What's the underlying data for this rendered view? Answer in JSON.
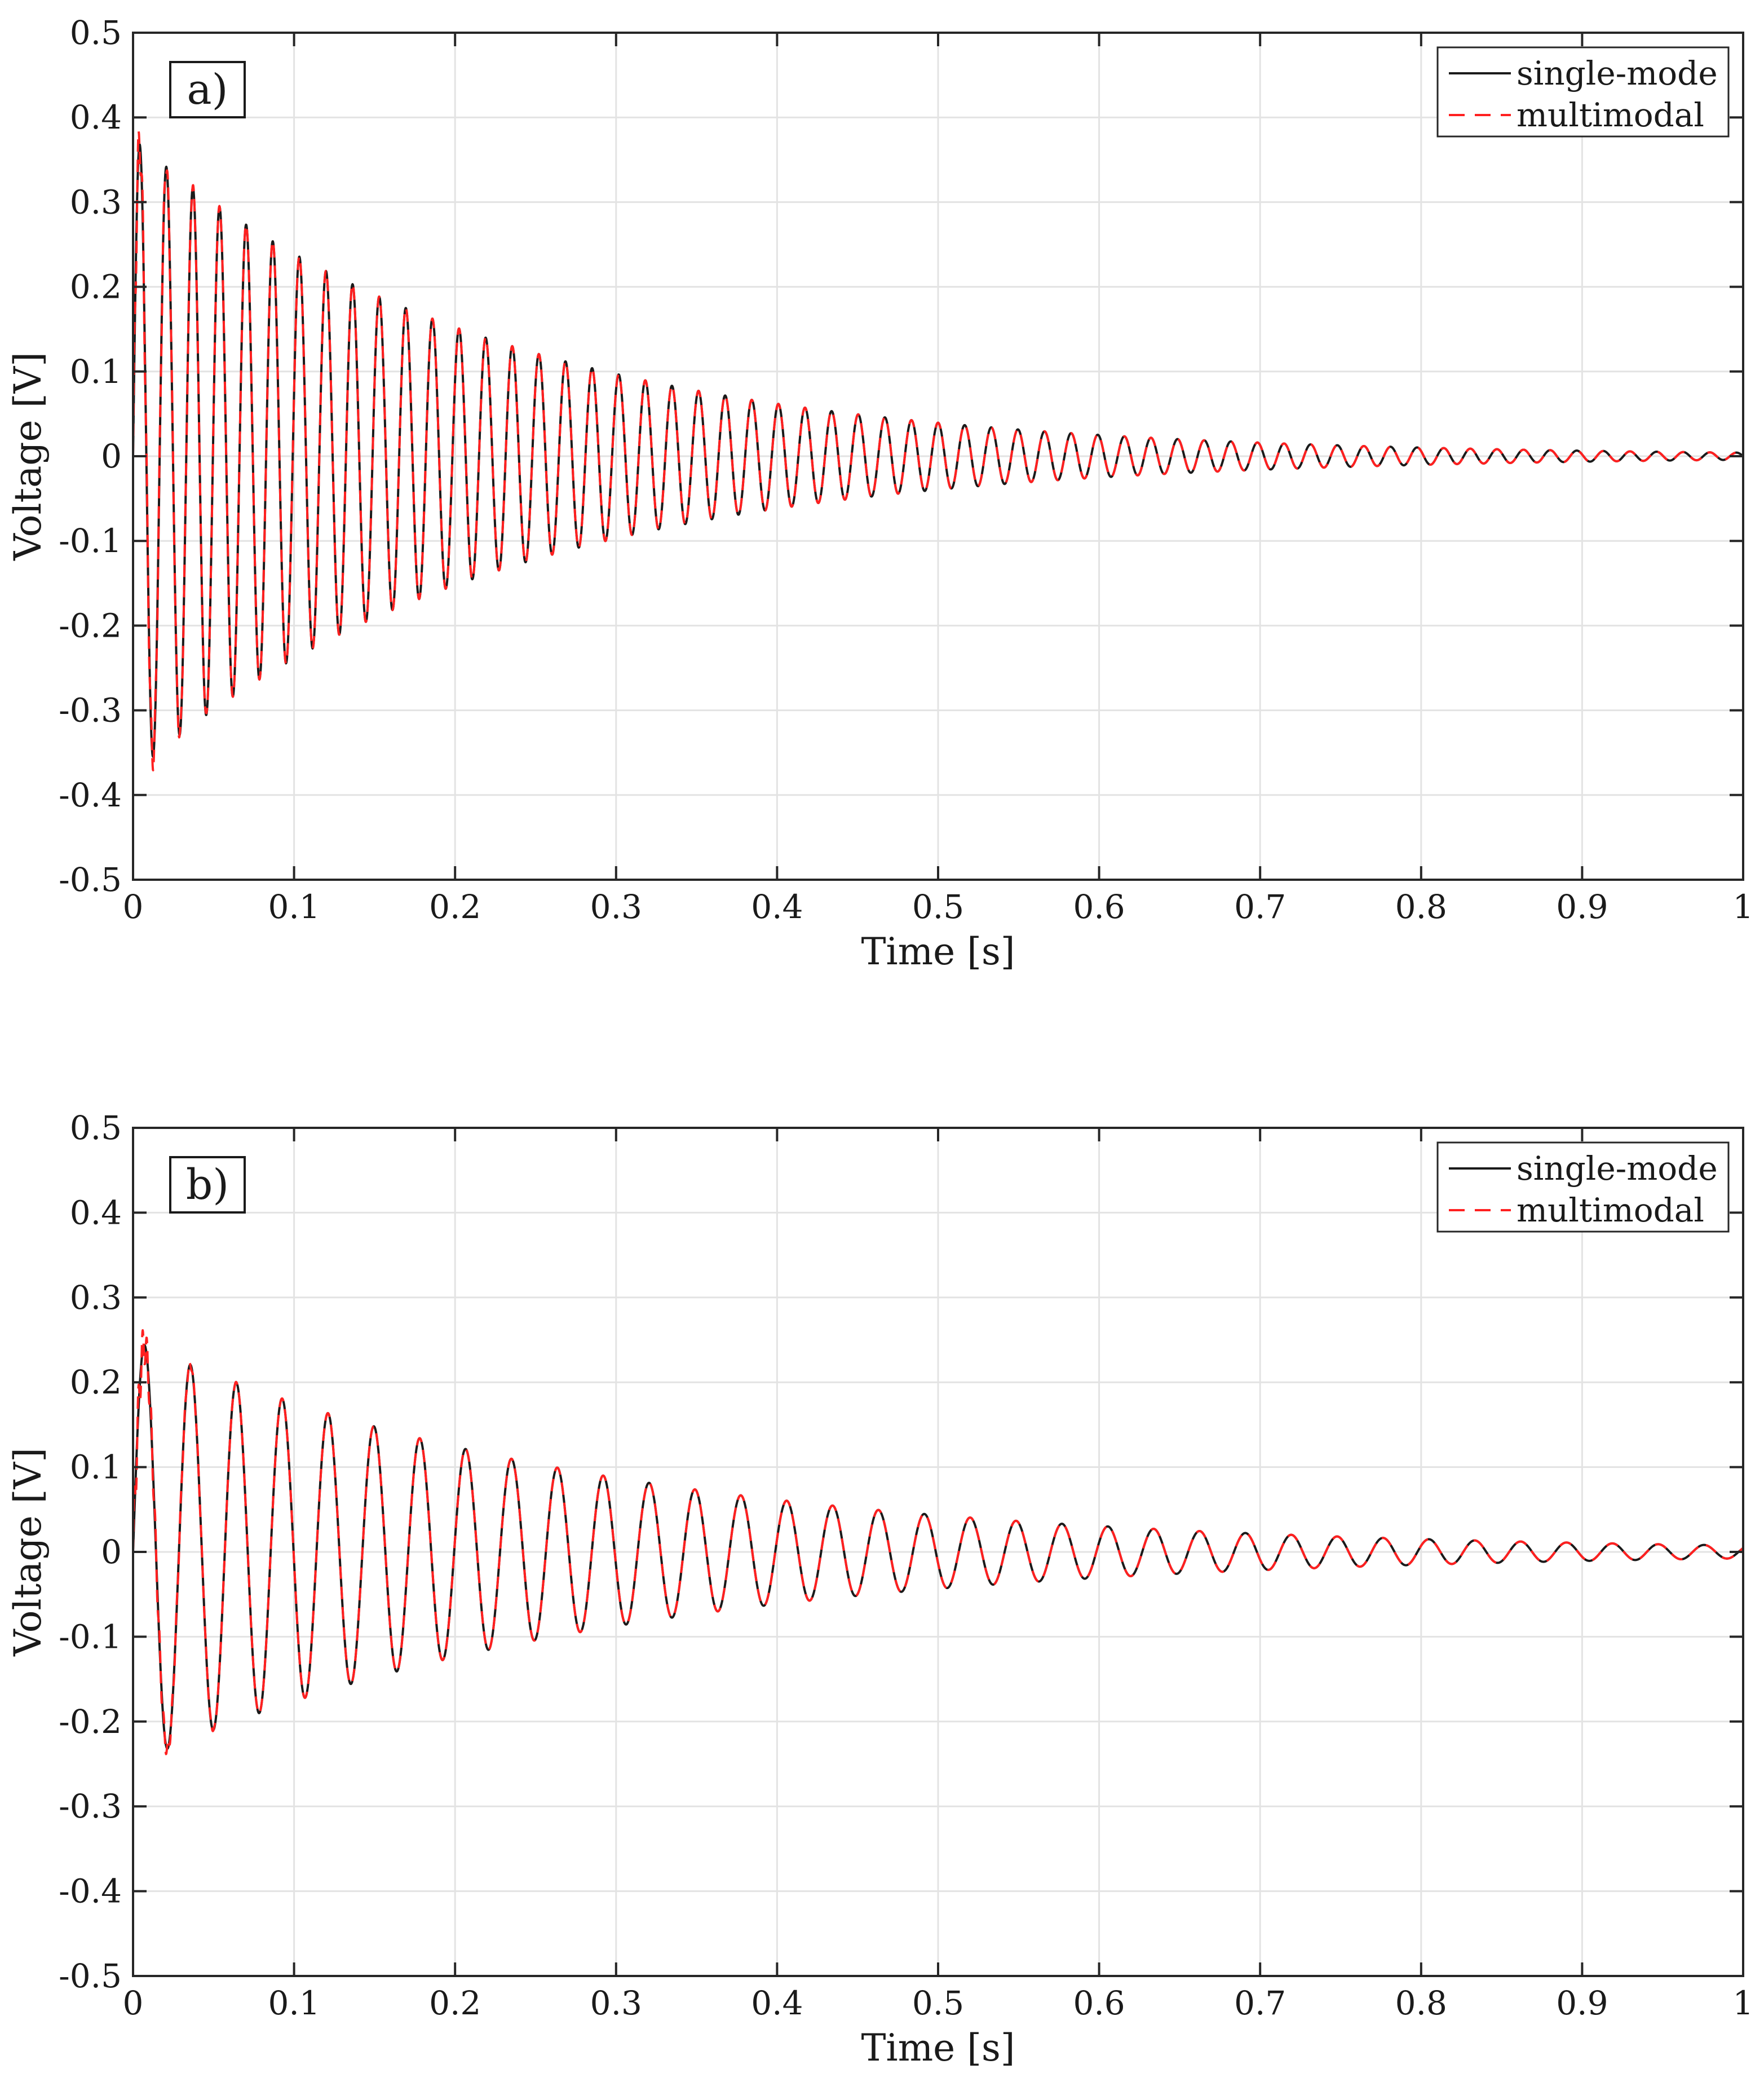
{
  "chart_data": [
    {
      "type": "line",
      "panel_label": "a)",
      "xlabel": "Time [s]",
      "ylabel": "Voltage [V]",
      "xlim": [
        0,
        1
      ],
      "ylim": [
        -0.5,
        0.5
      ],
      "xticks": [
        0,
        0.1,
        0.2,
        0.3,
        0.4,
        0.5,
        0.6,
        0.7,
        0.8,
        0.9,
        1
      ],
      "xtick_labels": [
        "0",
        "0.1",
        "0.2",
        "0.3",
        "0.4",
        "0.5",
        "0.6",
        "0.7",
        "0.8",
        "0.9",
        "1"
      ],
      "yticks": [
        -0.5,
        -0.4,
        -0.3,
        -0.2,
        -0.1,
        0,
        0.1,
        0.2,
        0.3,
        0.4,
        0.5
      ],
      "ytick_labels": [
        "-0.5",
        "-0.4",
        "-0.3",
        "-0.2",
        "-0.1",
        "0",
        "0.1",
        "0.2",
        "0.3",
        "0.4",
        "0.5"
      ],
      "grid": true,
      "legend_position": "top-right",
      "signal": {
        "frequency_hz": 60.5,
        "initial_amplitude_v": 0.375,
        "decay_per_s": 4.5,
        "duration_s": 1
      },
      "series": [
        {
          "name": "single-mode",
          "color": "#1a1a1a",
          "style": "solid",
          "peak_v": 0.37,
          "trough_v": -0.4
        },
        {
          "name": "multimodal",
          "color": "#ff2020",
          "style": "dashed",
          "peak_v": 0.4,
          "trough_v": -0.41
        }
      ]
    },
    {
      "type": "line",
      "panel_label": "b)",
      "xlabel": "Time [s]",
      "ylabel": "Voltage [V]",
      "xlim": [
        0,
        1
      ],
      "ylim": [
        -0.5,
        0.5
      ],
      "xticks": [
        0,
        0.1,
        0.2,
        0.3,
        0.4,
        0.5,
        0.6,
        0.7,
        0.8,
        0.9,
        1
      ],
      "xtick_labels": [
        "0",
        "0.1",
        "0.2",
        "0.3",
        "0.4",
        "0.5",
        "0.6",
        "0.7",
        "0.8",
        "0.9",
        "1"
      ],
      "yticks": [
        -0.5,
        -0.4,
        -0.3,
        -0.2,
        -0.1,
        0,
        0.1,
        0.2,
        0.3,
        0.4,
        0.5
      ],
      "ytick_labels": [
        "-0.5",
        "-0.4",
        "-0.3",
        "-0.2",
        "-0.1",
        "0",
        "0.1",
        "0.2",
        "0.3",
        "0.4",
        "0.5"
      ],
      "grid": true,
      "legend_position": "top-right",
      "signal": {
        "frequency_hz": 35.1,
        "initial_amplitude_v": 0.25,
        "decay_per_s": 3.5,
        "duration_s": 1
      },
      "series": [
        {
          "name": "single-mode",
          "color": "#1a1a1a",
          "style": "solid",
          "peak_v": 0.22,
          "trough_v": -0.24
        },
        {
          "name": "multimodal",
          "color": "#ff2020",
          "style": "dashed",
          "peak_v": 0.24,
          "trough_v": -0.24
        }
      ]
    }
  ]
}
